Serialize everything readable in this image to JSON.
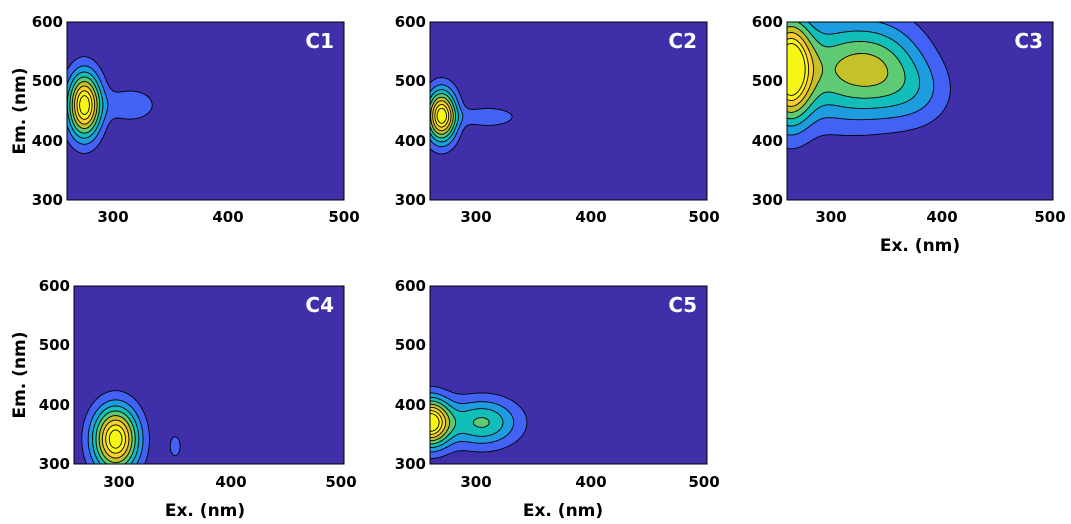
{
  "chart_data": [
    {
      "type": "contour",
      "title": "C1",
      "xlabel": "",
      "ylabel": "Em. (nm)",
      "xlim": [
        260,
        500
      ],
      "ylim": [
        300,
        600
      ],
      "xticks": [
        "300",
        "400",
        "500"
      ],
      "yticks": [
        "300",
        "400",
        "500",
        "600"
      ],
      "peaks": [
        {
          "ex": 275,
          "em": 460,
          "sx": 10,
          "sy": 38,
          "amp": 1.0
        },
        {
          "ex": 315,
          "em": 460,
          "sx": 16,
          "sy": 20,
          "amp": 0.2
        }
      ]
    },
    {
      "type": "contour",
      "title": "C2",
      "xlabel": "",
      "ylabel": "",
      "xlim": [
        260,
        500
      ],
      "ylim": [
        300,
        600
      ],
      "xticks": [
        "300",
        "400",
        "500"
      ],
      "yticks": [
        "300",
        "400",
        "500",
        "600"
      ],
      "peaks": [
        {
          "ex": 270,
          "em": 442,
          "sx": 9,
          "sy": 30,
          "amp": 1.0
        },
        {
          "ex": 310,
          "em": 440,
          "sx": 18,
          "sy": 12,
          "amp": 0.2
        }
      ]
    },
    {
      "type": "contour",
      "title": "C3",
      "xlabel": "Ex. (nm)",
      "ylabel": "",
      "xlim": [
        260,
        500
      ],
      "ylim": [
        300,
        600
      ],
      "xticks": [
        "300",
        "400",
        "500"
      ],
      "yticks": [
        "300",
        "400",
        "500",
        "600"
      ],
      "peaks": [
        {
          "ex": 262,
          "em": 520,
          "sx": 14,
          "sy": 60,
          "amp": 1.0
        },
        {
          "ex": 300,
          "em": 520,
          "sx": 30,
          "sy": 60,
          "amp": 0.42
        },
        {
          "ex": 345,
          "em": 520,
          "sx": 28,
          "sy": 55,
          "amp": 0.45
        },
        {
          "ex": 380,
          "em": 480,
          "sx": 22,
          "sy": 40,
          "amp": 0.15
        }
      ]
    },
    {
      "type": "contour",
      "title": "C4",
      "xlabel": "Ex. (nm)",
      "ylabel": "Em. (nm)",
      "xlim": [
        260,
        500
      ],
      "ylim": [
        300,
        600
      ],
      "xticks": [
        "300",
        "400",
        "500"
      ],
      "yticks": [
        "300",
        "400",
        "500",
        "600"
      ],
      "peaks": [
        {
          "ex": 297,
          "em": 342,
          "sx": 14,
          "sy": 38,
          "amp": 1.0
        },
        {
          "ex": 350,
          "em": 330,
          "sx": 6,
          "sy": 22,
          "amp": 0.13
        }
      ]
    },
    {
      "type": "contour",
      "title": "C5",
      "xlabel": "Ex. (nm)",
      "ylabel": "",
      "xlim": [
        260,
        500
      ],
      "ylim": [
        300,
        600
      ],
      "xticks": [
        "300",
        "400",
        "500"
      ],
      "yticks": [
        "300",
        "400",
        "500",
        "600"
      ],
      "peaks": [
        {
          "ex": 260,
          "em": 370,
          "sx": 12,
          "sy": 28,
          "amp": 1.0
        },
        {
          "ex": 305,
          "em": 370,
          "sx": 22,
          "sy": 28,
          "amp": 0.48
        }
      ]
    }
  ],
  "colors": {
    "background": "#3F2FA8",
    "stops": [
      "#3F2FA8",
      "#4363F5",
      "#1E9CE0",
      "#12BEB9",
      "#5FCB74",
      "#C5C12B",
      "#FBCF2F",
      "#F7F614"
    ],
    "line": "#000000",
    "label": "#ffffff"
  },
  "levels": [
    0.1,
    0.22,
    0.34,
    0.46,
    0.58,
    0.7,
    0.82,
    0.92
  ]
}
